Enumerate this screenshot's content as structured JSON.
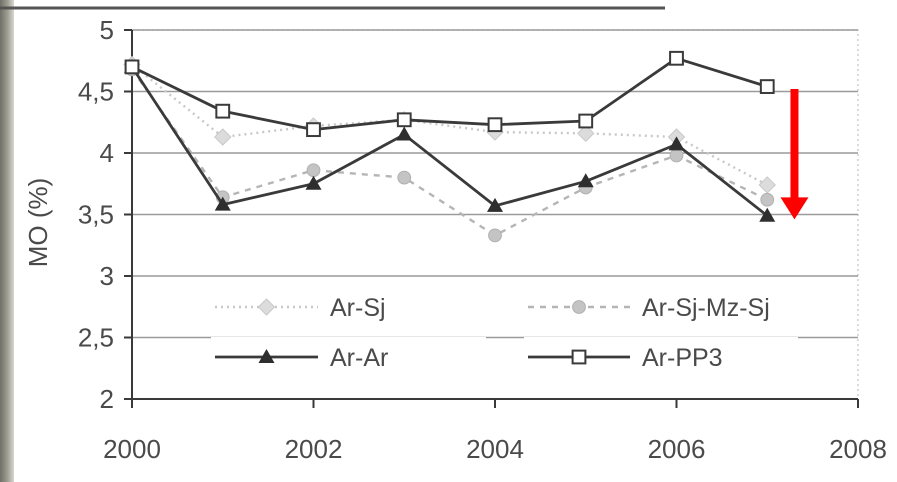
{
  "chart_data": {
    "type": "line",
    "title": "",
    "xlabel": "",
    "ylabel": "MO (%)",
    "xlim": [
      2000,
      2008
    ],
    "ylim": [
      2,
      5
    ],
    "x_ticks": [
      "2000",
      "2002",
      "2004",
      "2006",
      "2008"
    ],
    "y_ticks": [
      "2",
      "2,5",
      "3",
      "3,5",
      "4",
      "4,5",
      "5"
    ],
    "grid": true,
    "legend_position": "bottom-center",
    "x": [
      2000,
      2001,
      2002,
      2003,
      2004,
      2005,
      2006,
      2007
    ],
    "series": [
      {
        "name": "Ar-Sj",
        "marker": "diamond",
        "style": "dotted",
        "color": "#c8c8c8",
        "values": [
          4.72,
          4.13,
          4.22,
          4.27,
          4.17,
          4.16,
          4.13,
          3.74
        ]
      },
      {
        "name": "Ar-Sj-Mz-Sj",
        "marker": "circle",
        "style": "dashed",
        "color": "#b5b5b5",
        "values": [
          4.68,
          3.64,
          3.86,
          3.8,
          3.33,
          3.72,
          3.98,
          3.62
        ]
      },
      {
        "name": "Ar-Ar",
        "marker": "triangle",
        "style": "solid",
        "color": "#3a3a3a",
        "values": [
          4.7,
          3.58,
          3.75,
          4.15,
          3.57,
          3.77,
          4.07,
          3.49
        ]
      },
      {
        "name": "Ar-PP3",
        "marker": "square",
        "style": "solid",
        "color": "#3a3a3a",
        "values": [
          4.7,
          4.34,
          4.19,
          4.27,
          4.23,
          4.26,
          4.77,
          4.54
        ]
      }
    ],
    "annotations": [
      {
        "type": "arrow",
        "color": "#ff0000",
        "direction": "down",
        "x": 2007.3,
        "from": 4.52,
        "to": 3.46
      }
    ]
  }
}
